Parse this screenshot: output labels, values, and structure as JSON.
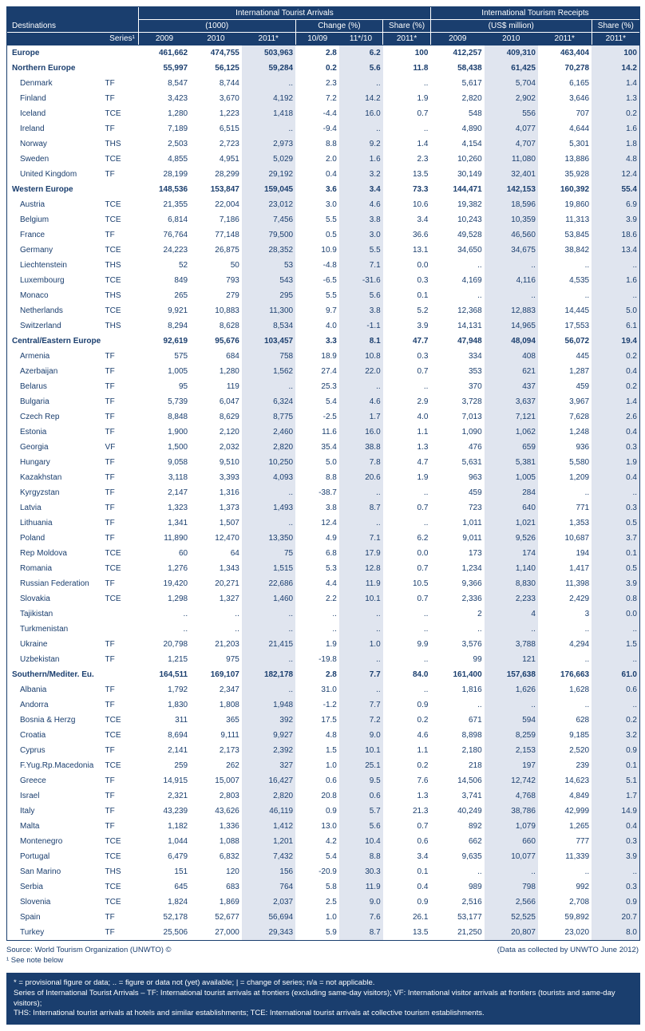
{
  "header": {
    "group_arrivals": "International Tourist Arrivals",
    "group_receipts": "International Tourism Receipts",
    "sub_arrivals_1000": "(1000)",
    "sub_change": "Change (%)",
    "sub_share": "Share (%)",
    "sub_receipts_usm": "(US$ million)",
    "destinations": "Destinations",
    "series": "Series¹",
    "y2009": "2009",
    "y2010": "2010",
    "y2011": "2011*",
    "c1009": "10/09",
    "c1110": "11*/10",
    "s2011": "2011*"
  },
  "colwidths": {
    "dest": 96,
    "series": 36,
    "a09": 52,
    "a10": 52,
    "a11": 54,
    "c1": 44,
    "c2": 44,
    "sh": 48,
    "r09": 54,
    "r10": 54,
    "r11": 54,
    "rsh": 48
  },
  "colors": {
    "header_bg": "#1a3e6e",
    "shade_bg": "#e0e5ef",
    "text": "#1a3e6e"
  },
  "rows": [
    {
      "bold": true,
      "dest": "Europe",
      "series": "",
      "a09": "461,662",
      "a10": "474,755",
      "a11": "503,963",
      "c1": "2.8",
      "c2": "6.2",
      "sh": "100",
      "r09": "412,257",
      "r10": "409,310",
      "r11": "463,404",
      "rsh": "100"
    },
    {
      "bold": true,
      "dest": "Northern Europe",
      "series": "",
      "a09": "55,997",
      "a10": "56,125",
      "a11": "59,284",
      "c1": "0.2",
      "c2": "5.6",
      "sh": "11.8",
      "r09": "58,438",
      "r10": "61,425",
      "r11": "70,278",
      "rsh": "14.2"
    },
    {
      "indent": true,
      "dest": "Denmark",
      "series": "TF",
      "a09": "8,547",
      "a10": "8,744",
      "a11": "..",
      "c1": "2.3",
      "c2": "..",
      "sh": "..",
      "r09": "5,617",
      "r10": "5,704",
      "r11": "6,165",
      "rsh": "1.4"
    },
    {
      "indent": true,
      "dest": "Finland",
      "series": "TF",
      "a09": "3,423",
      "a10": "3,670",
      "a11": "4,192",
      "c1": "7.2",
      "c2": "14.2",
      "sh": "1.9",
      "r09": "2,820",
      "r10": "2,902",
      "r11": "3,646",
      "rsh": "1.3"
    },
    {
      "indent": true,
      "dest": "Iceland",
      "series": "TCE",
      "a09": "1,280",
      "a10": "1,223",
      "a11": "1,418",
      "c1": "-4.4",
      "c2": "16.0",
      "sh": "0.7",
      "r09": "548",
      "r10": "556",
      "r11": "707",
      "rsh": "0.2"
    },
    {
      "indent": true,
      "dest": "Ireland",
      "series": "TF",
      "a09": "7,189",
      "a10": "6,515",
      "a11": "..",
      "c1": "-9.4",
      "c2": "..",
      "sh": "..",
      "r09": "4,890",
      "r10": "4,077",
      "r11": "4,644",
      "rsh": "1.6"
    },
    {
      "indent": true,
      "dest": "Norway",
      "series": "THS",
      "a09": "2,503",
      "a10": "2,723",
      "a11": "2,973",
      "c1": "8.8",
      "c2": "9.2",
      "sh": "1.4",
      "r09": "4,154",
      "r10": "4,707",
      "r11": "5,301",
      "rsh": "1.8"
    },
    {
      "indent": true,
      "dest": "Sweden",
      "series": "TCE",
      "a09": "4,855",
      "a10": "4,951",
      "a11": "5,029",
      "c1": "2.0",
      "c2": "1.6",
      "sh": "2.3",
      "r09": "10,260",
      "r10": "11,080",
      "r11": "13,886",
      "rsh": "4.8"
    },
    {
      "indent": true,
      "dest": "United Kingdom",
      "series": "TF",
      "a09": "28,199",
      "a10": "28,299",
      "a11": "29,192",
      "c1": "0.4",
      "c2": "3.2",
      "sh": "13.5",
      "r09": "30,149",
      "r10": "32,401",
      "r11": "35,928",
      "rsh": "12.4"
    },
    {
      "bold": true,
      "dest": "Western Europe",
      "series": "",
      "a09": "148,536",
      "a10": "153,847",
      "a11": "159,045",
      "c1": "3.6",
      "c2": "3.4",
      "sh": "73.3",
      "r09": "144,471",
      "r10": "142,153",
      "r11": "160,392",
      "rsh": "55.4"
    },
    {
      "indent": true,
      "dest": "Austria",
      "series": "TCE",
      "a09": "21,355",
      "a10": "22,004",
      "a11": "23,012",
      "c1": "3.0",
      "c2": "4.6",
      "sh": "10.6",
      "r09": "19,382",
      "r10": "18,596",
      "r11": "19,860",
      "rsh": "6.9"
    },
    {
      "indent": true,
      "dest": "Belgium",
      "series": "TCE",
      "a09": "6,814",
      "a10": "7,186",
      "a11": "7,456",
      "c1": "5.5",
      "c2": "3.8",
      "sh": "3.4",
      "r09": "10,243",
      "r10": "10,359",
      "r11": "11,313",
      "rsh": "3.9"
    },
    {
      "indent": true,
      "dest": "France",
      "series": "TF",
      "a09": "76,764",
      "a10": "77,148",
      "a11": "79,500",
      "c1": "0.5",
      "c2": "3.0",
      "sh": "36.6",
      "r09": "49,528",
      "r10": "46,560",
      "r11": "53,845",
      "rsh": "18.6"
    },
    {
      "indent": true,
      "dest": "Germany",
      "series": "TCE",
      "a09": "24,223",
      "a10": "26,875",
      "a11": "28,352",
      "c1": "10.9",
      "c2": "5.5",
      "sh": "13.1",
      "r09": "34,650",
      "r10": "34,675",
      "r11": "38,842",
      "rsh": "13.4"
    },
    {
      "indent": true,
      "dest": "Liechtenstein",
      "series": "THS",
      "a09": "52",
      "a10": "50",
      "a11": "53",
      "c1": "-4.8",
      "c2": "7.1",
      "sh": "0.0",
      "r09": "..",
      "r10": "..",
      "r11": "..",
      "rsh": ".."
    },
    {
      "indent": true,
      "dest": "Luxembourg",
      "series": "TCE",
      "a09": "849",
      "a10": "793",
      "a11": "543",
      "c1": "-6.5",
      "c2": "-31.6",
      "sh": "0.3",
      "r09": "4,169",
      "r10": "4,116",
      "r11": "4,535",
      "rsh": "1.6"
    },
    {
      "indent": true,
      "dest": "Monaco",
      "series": "THS",
      "a09": "265",
      "a10": "279",
      "a11": "295",
      "c1": "5.5",
      "c2": "5.6",
      "sh": "0.1",
      "r09": "..",
      "r10": "..",
      "r11": "..",
      "rsh": ".."
    },
    {
      "indent": true,
      "dest": "Netherlands",
      "series": "TCE",
      "a09": "9,921",
      "a10": "10,883",
      "a11": "11,300",
      "c1": "9.7",
      "c2": "3.8",
      "sh": "5.2",
      "r09": "12,368",
      "r10": "12,883",
      "r11": "14,445",
      "rsh": "5.0"
    },
    {
      "indent": true,
      "dest": "Switzerland",
      "series": "THS",
      "a09": "8,294",
      "a10": "8,628",
      "a11": "8,534",
      "c1": "4.0",
      "c2": "-1.1",
      "sh": "3.9",
      "r09": "14,131",
      "r10": "14,965",
      "r11": "17,553",
      "rsh": "6.1"
    },
    {
      "bold": true,
      "dest": "Central/Eastern Europe",
      "series": "",
      "a09": "92,619",
      "a10": "95,676",
      "a11": "103,457",
      "c1": "3.3",
      "c2": "8.1",
      "sh": "47.7",
      "r09": "47,948",
      "r10": "48,094",
      "r11": "56,072",
      "rsh": "19.4"
    },
    {
      "indent": true,
      "dest": "Armenia",
      "series": "TF",
      "a09": "575",
      "a10": "684",
      "a11": "758",
      "c1": "18.9",
      "c2": "10.8",
      "sh": "0.3",
      "r09": "334",
      "r10": "408",
      "r11": "445",
      "rsh": "0.2"
    },
    {
      "indent": true,
      "dest": "Azerbaijan",
      "series": "TF",
      "a09": "1,005",
      "a10": "1,280",
      "a11": "1,562",
      "c1": "27.4",
      "c2": "22.0",
      "sh": "0.7",
      "r09": "353",
      "r10": "621",
      "r11": "1,287",
      "rsh": "0.4"
    },
    {
      "indent": true,
      "dest": "Belarus",
      "series": "TF",
      "a09": "95",
      "a10": "119",
      "a11": "..",
      "c1": "25.3",
      "c2": "..",
      "sh": "..",
      "r09": "370",
      "r10": "437",
      "r11": "459",
      "rsh": "0.2"
    },
    {
      "indent": true,
      "dest": "Bulgaria",
      "series": "TF",
      "a09": "5,739",
      "a10": "6,047",
      "a11": "6,324",
      "c1": "5.4",
      "c2": "4.6",
      "sh": "2.9",
      "r09": "3,728",
      "r10": "3,637",
      "r11": "3,967",
      "rsh": "1.4"
    },
    {
      "indent": true,
      "dest": "Czech Rep",
      "series": "TF",
      "a09": "8,848",
      "a10": "8,629",
      "a11": "8,775",
      "c1": "-2.5",
      "c2": "1.7",
      "sh": "4.0",
      "r09": "7,013",
      "r10": "7,121",
      "r11": "7,628",
      "rsh": "2.6"
    },
    {
      "indent": true,
      "dest": "Estonia",
      "series": "TF",
      "a09": "1,900",
      "a10": "2,120",
      "a11": "2,460",
      "c1": "11.6",
      "c2": "16.0",
      "sh": "1.1",
      "r09": "1,090",
      "r10": "1,062",
      "r11": "1,248",
      "rsh": "0.4"
    },
    {
      "indent": true,
      "dest": "Georgia",
      "series": "VF",
      "a09": "1,500",
      "a10": "2,032",
      "a11": "2,820",
      "c1": "35.4",
      "c2": "38.8",
      "sh": "1.3",
      "r09": "476",
      "r10": "659",
      "r11": "936",
      "rsh": "0.3"
    },
    {
      "indent": true,
      "dest": "Hungary",
      "series": "TF",
      "a09": "9,058",
      "a10": "9,510",
      "a11": "10,250",
      "c1": "5.0",
      "c2": "7.8",
      "sh": "4.7",
      "r09": "5,631",
      "r10": "5,381",
      "r11": "5,580",
      "rsh": "1.9"
    },
    {
      "indent": true,
      "dest": "Kazakhstan",
      "series": "TF",
      "a09": "3,118",
      "a10": "3,393",
      "a11": "4,093",
      "c1": "8.8",
      "c2": "20.6",
      "sh": "1.9",
      "r09": "963",
      "r10": "1,005",
      "r11": "1,209",
      "rsh": "0.4"
    },
    {
      "indent": true,
      "dest": "Kyrgyzstan",
      "series": "TF",
      "a09": "2,147",
      "a10": "1,316",
      "a11": "..",
      "c1": "-38.7",
      "c2": "..",
      "sh": "..",
      "r09": "459",
      "r10": "284",
      "r11": "..",
      "rsh": ".."
    },
    {
      "indent": true,
      "dest": "Latvia",
      "series": "TF",
      "a09": "1,323",
      "a10": "1,373",
      "a11": "1,493",
      "c1": "3.8",
      "c2": "8.7",
      "sh": "0.7",
      "r09": "723",
      "r10": "640",
      "r11": "771",
      "rsh": "0.3"
    },
    {
      "indent": true,
      "dest": "Lithuania",
      "series": "TF",
      "a09": "1,341",
      "a10": "1,507",
      "a11": "..",
      "c1": "12.4",
      "c2": "..",
      "sh": "..",
      "r09": "1,011",
      "r10": "1,021",
      "r11": "1,353",
      "rsh": "0.5"
    },
    {
      "indent": true,
      "dest": "Poland",
      "series": "TF",
      "a09": "11,890",
      "a10": "12,470",
      "a11": "13,350",
      "c1": "4.9",
      "c2": "7.1",
      "sh": "6.2",
      "r09": "9,011",
      "r10": "9,526",
      "r11": "10,687",
      "rsh": "3.7"
    },
    {
      "indent": true,
      "dest": "Rep Moldova",
      "series": "TCE",
      "a09": "60",
      "a10": "64",
      "a11": "75",
      "c1": "6.8",
      "c2": "17.9",
      "sh": "0.0",
      "r09": "173",
      "r10": "174",
      "r11": "194",
      "rsh": "0.1"
    },
    {
      "indent": true,
      "dest": "Romania",
      "series": "TCE",
      "a09": "1,276",
      "a10": "1,343",
      "a11": "1,515",
      "c1": "5.3",
      "c2": "12.8",
      "sh": "0.7",
      "r09": "1,234",
      "r10": "1,140",
      "r11": "1,417",
      "rsh": "0.5"
    },
    {
      "indent": true,
      "dest": "Russian Federation",
      "series": "TF",
      "a09": "19,420",
      "a10": "20,271",
      "a11": "22,686",
      "c1": "4.4",
      "c2": "11.9",
      "sh": "10.5",
      "r09": "9,366",
      "r10": "8,830",
      "r11": "11,398",
      "rsh": "3.9"
    },
    {
      "indent": true,
      "dest": "Slovakia",
      "series": "TCE",
      "a09": "1,298",
      "a10": "1,327",
      "a11": "1,460",
      "c1": "2.2",
      "c2": "10.1",
      "sh": "0.7",
      "r09": "2,336",
      "r10": "2,233",
      "r11": "2,429",
      "rsh": "0.8"
    },
    {
      "indent": true,
      "dest": "Tajikistan",
      "series": "",
      "a09": "..",
      "a10": "..",
      "a11": "..",
      "c1": "..",
      "c2": "..",
      "sh": "..",
      "r09": "2",
      "r10": "4",
      "r11": "3",
      "rsh": "0.0"
    },
    {
      "indent": true,
      "dest": "Turkmenistan",
      "series": "",
      "a09": "..",
      "a10": "..",
      "a11": "..",
      "c1": "..",
      "c2": "..",
      "sh": "..",
      "r09": "..",
      "r10": "..",
      "r11": "..",
      "rsh": ".."
    },
    {
      "indent": true,
      "dest": "Ukraine",
      "series": "TF",
      "a09": "20,798",
      "a10": "21,203",
      "a11": "21,415",
      "c1": "1.9",
      "c2": "1.0",
      "sh": "9.9",
      "r09": "3,576",
      "r10": "3,788",
      "r11": "4,294",
      "rsh": "1.5"
    },
    {
      "indent": true,
      "dest": "Uzbekistan",
      "series": "TF",
      "a09": "1,215",
      "a10": "975",
      "a11": "..",
      "c1": "-19.8",
      "c2": "..",
      "sh": "..",
      "r09": "99",
      "r10": "121",
      "r11": "..",
      "rsh": ".."
    },
    {
      "bold": true,
      "dest": "Southern/Mediter. Eu.",
      "series": "",
      "a09": "164,511",
      "a10": "169,107",
      "a11": "182,178",
      "c1": "2.8",
      "c2": "7.7",
      "sh": "84.0",
      "r09": "161,400",
      "r10": "157,638",
      "r11": "176,663",
      "rsh": "61.0"
    },
    {
      "indent": true,
      "dest": "Albania",
      "series": "TF",
      "a09": "1,792",
      "a10": "2,347",
      "a11": "..",
      "c1": "31.0",
      "c2": "..",
      "sh": "..",
      "r09": "1,816",
      "r10": "1,626",
      "r11": "1,628",
      "rsh": "0.6"
    },
    {
      "indent": true,
      "dest": "Andorra",
      "series": "TF",
      "a09": "1,830",
      "a10": "1,808",
      "a11": "1,948",
      "c1": "-1.2",
      "c2": "7.7",
      "sh": "0.9",
      "r09": "..",
      "r10": "..",
      "r11": "..",
      "rsh": ".."
    },
    {
      "indent": true,
      "dest": "Bosnia & Herzg",
      "series": "TCE",
      "a09": "311",
      "a10": "365",
      "a11": "392",
      "c1": "17.5",
      "c2": "7.2",
      "sh": "0.2",
      "r09": "671",
      "r10": "594",
      "r11": "628",
      "rsh": "0.2"
    },
    {
      "indent": true,
      "dest": "Croatia",
      "series": "TCE",
      "a09": "8,694",
      "a10": "9,111",
      "a11": "9,927",
      "c1": "4.8",
      "c2": "9.0",
      "sh": "4.6",
      "r09": "8,898",
      "r10": "8,259",
      "r11": "9,185",
      "rsh": "3.2"
    },
    {
      "indent": true,
      "dest": "Cyprus",
      "series": "TF",
      "a09": "2,141",
      "a10": "2,173",
      "a11": "2,392",
      "c1": "1.5",
      "c2": "10.1",
      "sh": "1.1",
      "r09": "2,180",
      "r10": "2,153",
      "r11": "2,520",
      "rsh": "0.9"
    },
    {
      "indent": true,
      "dest": "F.Yug.Rp.Macedonia",
      "series": "TCE",
      "a09": "259",
      "a10": "262",
      "a11": "327",
      "c1": "1.0",
      "c2": "25.1",
      "sh": "0.2",
      "r09": "218",
      "r10": "197",
      "r11": "239",
      "rsh": "0.1"
    },
    {
      "indent": true,
      "dest": "Greece",
      "series": "TF",
      "a09": "14,915",
      "a10": "15,007",
      "a11": "16,427",
      "c1": "0.6",
      "c2": "9.5",
      "sh": "7.6",
      "r09": "14,506",
      "r10": "12,742",
      "r11": "14,623",
      "rsh": "5.1"
    },
    {
      "indent": true,
      "dest": "Israel",
      "series": "TF",
      "a09": "2,321",
      "a10": "2,803",
      "a11": "2,820",
      "c1": "20.8",
      "c2": "0.6",
      "sh": "1.3",
      "r09": "3,741",
      "r10": "4,768",
      "r11": "4,849",
      "rsh": "1.7"
    },
    {
      "indent": true,
      "dest": "Italy",
      "series": "TF",
      "a09": "43,239",
      "a10": "43,626",
      "a11": "46,119",
      "c1": "0.9",
      "c2": "5.7",
      "sh": "21.3",
      "r09": "40,249",
      "r10": "38,786",
      "r11": "42,999",
      "rsh": "14.9"
    },
    {
      "indent": true,
      "dest": "Malta",
      "series": "TF",
      "a09": "1,182",
      "a10": "1,336",
      "a11": "1,412",
      "c1": "13.0",
      "c2": "5.6",
      "sh": "0.7",
      "r09": "892",
      "r10": "1,079",
      "r11": "1,265",
      "rsh": "0.4"
    },
    {
      "indent": true,
      "dest": "Montenegro",
      "series": "TCE",
      "a09": "1,044",
      "a10": "1,088",
      "a11": "1,201",
      "c1": "4.2",
      "c2": "10.4",
      "sh": "0.6",
      "r09": "662",
      "r10": "660",
      "r11": "777",
      "rsh": "0.3"
    },
    {
      "indent": true,
      "dest": "Portugal",
      "series": "TCE",
      "a09": "6,479",
      "a10": "6,832",
      "a11": "7,432",
      "c1": "5.4",
      "c2": "8.8",
      "sh": "3.4",
      "r09": "9,635",
      "r10": "10,077",
      "r11": "11,339",
      "rsh": "3.9"
    },
    {
      "indent": true,
      "dest": "San Marino",
      "series": "THS",
      "a09": "151",
      "a10": "120",
      "a11": "156",
      "c1": "-20.9",
      "c2": "30.3",
      "sh": "0.1",
      "r09": "..",
      "r10": "..",
      "r11": "..",
      "rsh": ".."
    },
    {
      "indent": true,
      "dest": "Serbia",
      "series": "TCE",
      "a09": "645",
      "a10": "683",
      "a11": "764",
      "c1": "5.8",
      "c2": "11.9",
      "sh": "0.4",
      "r09": "989",
      "r10": "798",
      "r11": "992",
      "rsh": "0.3"
    },
    {
      "indent": true,
      "dest": "Slovenia",
      "series": "TCE",
      "a09": "1,824",
      "a10": "1,869",
      "a11": "2,037",
      "c1": "2.5",
      "c2": "9.0",
      "sh": "0.9",
      "r09": "2,516",
      "r10": "2,566",
      "r11": "2,708",
      "rsh": "0.9"
    },
    {
      "indent": true,
      "dest": "Spain",
      "series": "TF",
      "a09": "52,178",
      "a10": "52,677",
      "a11": "56,694",
      "c1": "1.0",
      "c2": "7.6",
      "sh": "26.1",
      "r09": "53,177",
      "r10": "52,525",
      "r11": "59,892",
      "rsh": "20.7"
    },
    {
      "indent": true,
      "dest": "Turkey",
      "series": "TF",
      "a09": "25,506",
      "a10": "27,000",
      "a11": "29,343",
      "c1": "5.9",
      "c2": "8.7",
      "sh": "13.5",
      "r09": "21,250",
      "r10": "20,807",
      "r11": "23,020",
      "rsh": "8.0"
    }
  ],
  "footer": {
    "source": "Source: World Tourism Organization (UNWTO) ©",
    "right": "(Data as collected by UNWTO June 2012)",
    "seenote": "¹ See note below"
  },
  "notebox": {
    "line1": "* = provisional figure or data;  .. = figure or data not (yet) available; | = change of series; n/a = not applicable.",
    "line2": "Series of International Tourist Arrivals – TF: International tourist arrivals at frontiers (excluding same-day visitors); VF: International visitor arrivals at frontiers (tourists and same-day visitors);",
    "line3": "THS: International tourist arrivals at hotels and similar establishments; TCE: International tourist arrivals at collective tourism establishments."
  }
}
